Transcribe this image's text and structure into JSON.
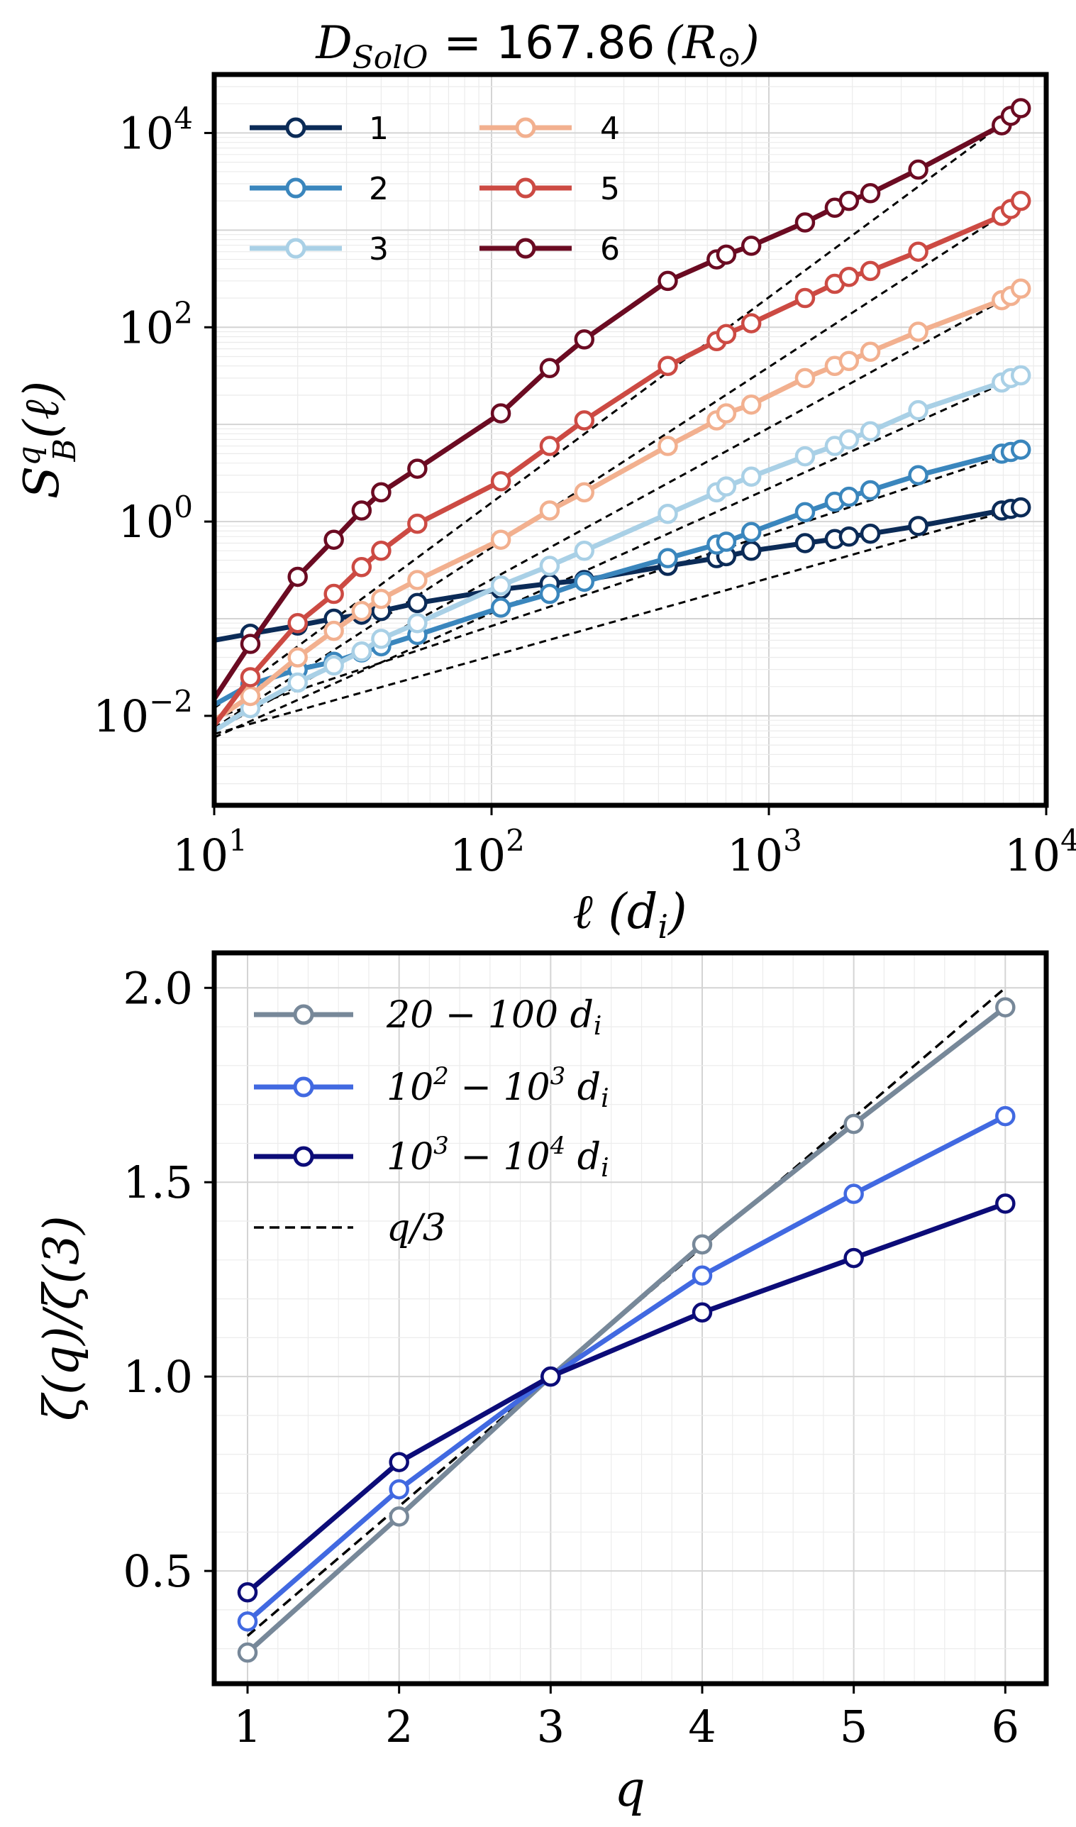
{
  "colors": {
    "q1": "#0b2b57",
    "q2": "#3a86bd",
    "q3": "#a9d0e6",
    "q4": "#f2b08f",
    "q5": "#cc4a43",
    "q6": "#6b0b22",
    "range1": "#778899",
    "range2": "#4169e1",
    "range3": "#0c0c78",
    "fit": "#000000"
  },
  "chart_data": [
    {
      "type": "line",
      "title_main": "D",
      "title_sub": "SolO",
      "title_value": "= 167.86",
      "title_unit": "(R",
      "title_unit_close": ")",
      "title_unit_symbol": "⊙",
      "xscale": "log",
      "yscale": "log",
      "xlim": [
        10,
        10000
      ],
      "ylim": [
        0.0012,
        40000
      ],
      "xlabel": "ℓ (d",
      "xlabel_sub": "i",
      "xlabel_close": ")",
      "ylabel_base": "S",
      "ylabel_sup": "q",
      "ylabel_sub": "B",
      "ylabel_arg": "(ℓ)",
      "xticks": [
        {
          "value": 10,
          "base": "10",
          "exp": "1"
        },
        {
          "value": 100,
          "base": "10",
          "exp": "2"
        },
        {
          "value": 1000,
          "base": "10",
          "exp": "3"
        },
        {
          "value": 10000,
          "base": "10",
          "exp": "4"
        }
      ],
      "yticks": [
        {
          "value": 0.01,
          "base": "10",
          "exp": "−2"
        },
        {
          "value": 1,
          "base": "10",
          "exp": "0"
        },
        {
          "value": 100,
          "base": "10",
          "exp": "2"
        },
        {
          "value": 10000,
          "base": "10",
          "exp": "4"
        }
      ],
      "grid": true,
      "legend_position": "top-left",
      "x": [
        13.5,
        20,
        27,
        34,
        40,
        54,
        108,
        162,
        216,
        432,
        648,
        702,
        864,
        1350,
        1728,
        1944,
        2322,
        3456,
        6912,
        7452,
        8100
      ],
      "series": [
        {
          "name": "1",
          "color_key": "q1",
          "line_start": [
            10,
            0.06
          ],
          "values": [
            0.07,
            0.085,
            0.1,
            0.11,
            0.12,
            0.145,
            0.2,
            0.23,
            0.25,
            0.35,
            0.42,
            0.44,
            0.5,
            0.6,
            0.66,
            0.7,
            0.75,
            0.9,
            1.3,
            1.35,
            1.4
          ]
        },
        {
          "name": "2",
          "color_key": "q2",
          "line_start": [
            10,
            0.013
          ],
          "values": [
            0.021,
            0.03,
            0.036,
            0.045,
            0.052,
            0.068,
            0.13,
            0.18,
            0.24,
            0.42,
            0.58,
            0.62,
            0.78,
            1.25,
            1.6,
            1.8,
            2.1,
            3.0,
            5.0,
            5.2,
            5.5
          ]
        },
        {
          "name": "3",
          "color_key": "q3",
          "line_start": [
            10,
            0.007
          ],
          "values": [
            0.012,
            0.022,
            0.033,
            0.046,
            0.062,
            0.09,
            0.22,
            0.35,
            0.5,
            1.2,
            2.0,
            2.3,
            2.9,
            4.7,
            6.0,
            7.0,
            8.5,
            14,
            27,
            30,
            32
          ]
        },
        {
          "name": "4",
          "color_key": "q4",
          "line_start": [
            10,
            0.009
          ],
          "values": [
            0.016,
            0.04,
            0.075,
            0.12,
            0.16,
            0.25,
            0.65,
            1.3,
            2.0,
            6.0,
            11,
            13,
            16,
            30,
            40,
            45,
            56,
            90,
            190,
            210,
            250
          ]
        },
        {
          "name": "5",
          "color_key": "q5",
          "line_start": [
            10,
            0.008
          ],
          "values": [
            0.025,
            0.09,
            0.18,
            0.34,
            0.5,
            0.95,
            2.6,
            6.0,
            11,
            40,
            72,
            85,
            110,
            200,
            280,
            330,
            380,
            600,
            1400,
            1650,
            2000
          ]
        },
        {
          "name": "6",
          "color_key": "q6",
          "line_start": [
            10,
            0.015
          ],
          "values": [
            0.055,
            0.27,
            0.65,
            1.3,
            2.0,
            3.5,
            13,
            38,
            75,
            300,
            500,
            560,
            690,
            1200,
            1700,
            2000,
            2400,
            4200,
            12000,
            15000,
            18000
          ]
        }
      ],
      "fits": [
        {
          "x": [
            10,
            8100
          ],
          "y": [
            0.0065,
            1.4
          ]
        },
        {
          "x": [
            10,
            8100
          ],
          "y": [
            0.0095,
            5.4
          ]
        },
        {
          "x": [
            10,
            8100
          ],
          "y": [
            0.006,
            32
          ]
        },
        {
          "x": [
            10,
            8100
          ],
          "y": [
            0.007,
            240
          ]
        },
        {
          "x": [
            10,
            8100
          ],
          "y": [
            0.0075,
            1900
          ]
        },
        {
          "x": [
            10,
            8100
          ],
          "y": [
            0.012,
            17000
          ]
        }
      ]
    },
    {
      "type": "line",
      "xlim": [
        0.78,
        6.27
      ],
      "ylim": [
        0.21,
        2.09
      ],
      "xlabel": "q",
      "ylabel": "ζ(q)/ζ(3)",
      "xticks": [
        "1",
        "2",
        "3",
        "4",
        "5",
        "6"
      ],
      "yticks": [
        "0.5",
        "1.0",
        "1.5",
        "2.0"
      ],
      "grid": true,
      "legend_position": "top-left",
      "x": [
        1,
        2,
        3,
        4,
        5,
        6
      ],
      "series": [
        {
          "name": "20 − 100 d",
          "name_sub": "i",
          "color_key": "range1",
          "values": [
            0.29,
            0.64,
            1.0,
            1.34,
            1.65,
            1.95
          ]
        },
        {
          "name": "10",
          "name_sup": "2",
          "name_mid": " − 10",
          "name_sup2": "3",
          "name_end": " d",
          "name_sub": "i",
          "color_key": "range2",
          "values": [
            0.37,
            0.71,
            1.0,
            1.26,
            1.47,
            1.67
          ]
        },
        {
          "name": "10",
          "name_sup": "3",
          "name_mid": " − 10",
          "name_sup2": "4",
          "name_end": " d",
          "name_sub": "i",
          "color_key": "range3",
          "values": [
            0.445,
            0.78,
            1.0,
            1.165,
            1.305,
            1.445
          ]
        }
      ],
      "reference": {
        "name": "q/3",
        "x": [
          1,
          6
        ],
        "y": [
          0.333,
          2.0
        ]
      }
    }
  ]
}
